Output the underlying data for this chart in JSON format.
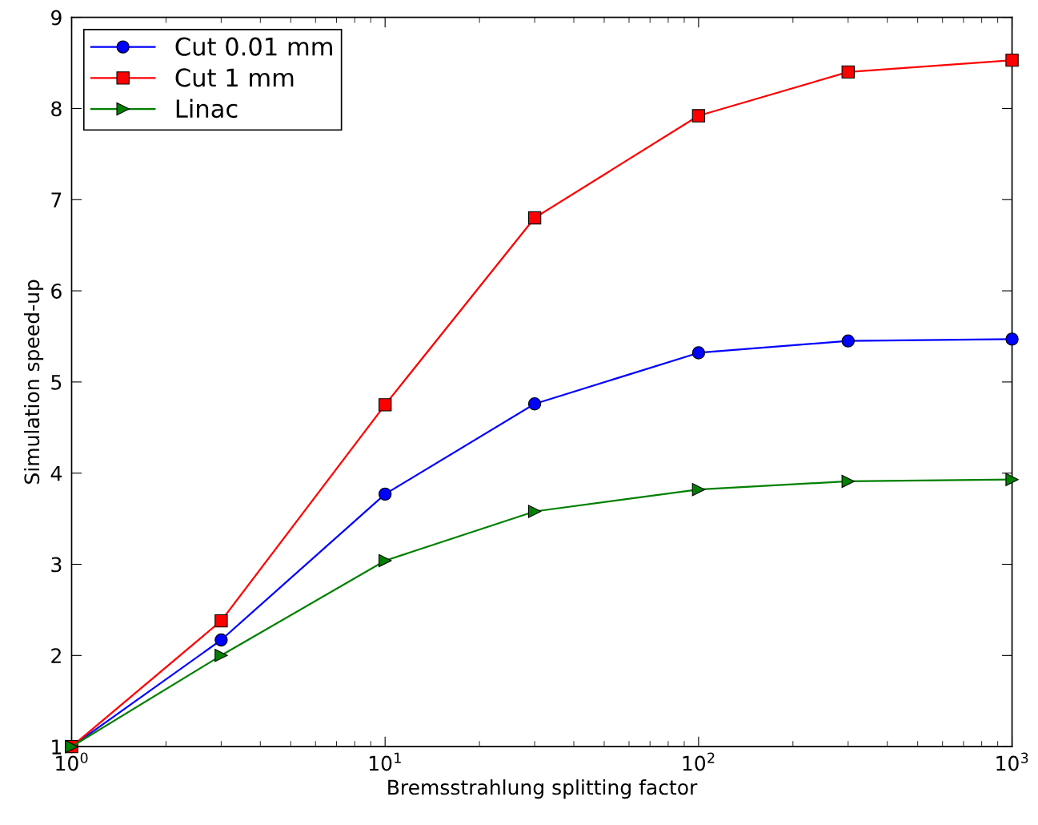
{
  "chart_data": {
    "type": "line",
    "xlabel": "Bremsstrahlung splitting factor",
    "ylabel": "Simulation speed-up",
    "x": [
      1,
      3,
      10,
      30,
      100,
      300,
      1000
    ],
    "series": [
      {
        "name": "Cut 0.01 mm",
        "color": "#0000ff",
        "marker": "circle",
        "values": [
          1.0,
          2.17,
          3.77,
          4.76,
          5.32,
          5.45,
          5.47
        ]
      },
      {
        "name": "Cut 1 mm",
        "color": "#ff0000",
        "marker": "square",
        "values": [
          1.0,
          2.38,
          4.75,
          6.8,
          7.92,
          8.4,
          8.53
        ]
      },
      {
        "name": "Linac",
        "color": "#008000",
        "marker": "triangle",
        "values": [
          1.0,
          2.0,
          3.04,
          3.58,
          3.82,
          3.91,
          3.93
        ]
      }
    ],
    "log": "x",
    "xlim": [
      1,
      1000
    ],
    "ylim": [
      1,
      9
    ],
    "xticks": [
      {
        "value": 1,
        "label": "10$^{0}$"
      },
      {
        "value": 10,
        "label": "10$^{1}$"
      },
      {
        "value": 100,
        "label": "10$^{2}$"
      },
      {
        "value": 1000,
        "label": "10$^{3}$"
      }
    ],
    "yticks": [
      1,
      2,
      3,
      4,
      5,
      6,
      7,
      8,
      9
    ],
    "grid": false,
    "legend": "top left",
    "line_style": "solid"
  }
}
